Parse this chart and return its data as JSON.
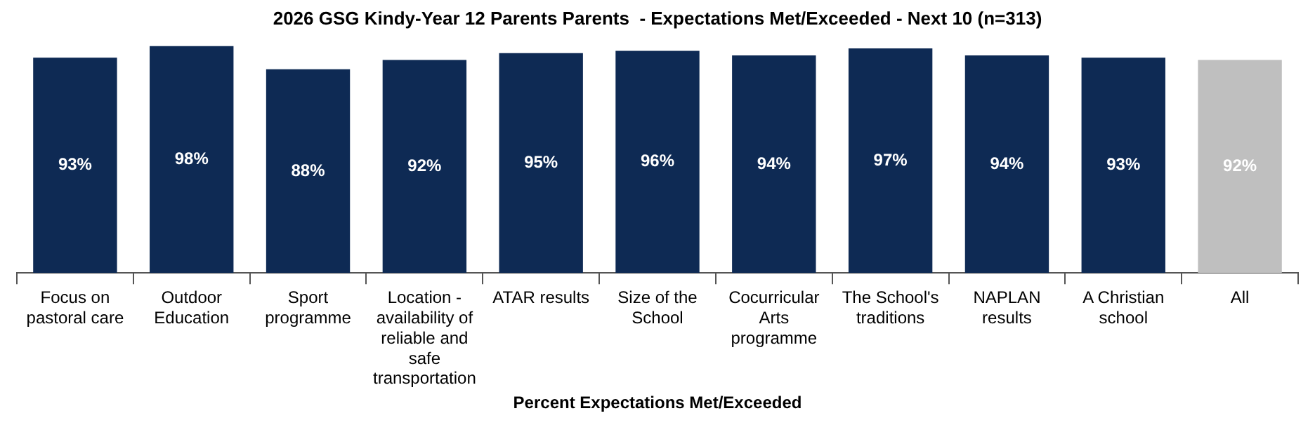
{
  "chart_data": {
    "type": "bar",
    "title": "2026 GSG Kindy-Year 12 Parents Parents  - Expectations Met/Exceeded - Next 10 (n=313)",
    "xlabel": "Percent Expectations Met/Exceeded",
    "categories": [
      "Focus on pastoral care",
      "Outdoor Education",
      "Sport programme",
      "Location - availability of reliable and safe transportation",
      "ATAR results",
      "Size of the School",
      "Cocurricular Arts programme",
      "The School's traditions",
      "NAPLAN results",
      "A Christian school",
      "All"
    ],
    "values": [
      93,
      98,
      88,
      92,
      95,
      96,
      94,
      97,
      94,
      93,
      92
    ],
    "value_labels": [
      "93%",
      "98%",
      "88%",
      "92%",
      "95%",
      "96%",
      "94%",
      "97%",
      "94%",
      "93%",
      "92%"
    ],
    "colors": [
      "#0e2a54",
      "#0e2a54",
      "#0e2a54",
      "#0e2a54",
      "#0e2a54",
      "#0e2a54",
      "#0e2a54",
      "#0e2a54",
      "#0e2a54",
      "#0e2a54",
      "#bfbfbf"
    ],
    "ylim": [
      0,
      100
    ],
    "tick_labels": "x",
    "grid": false,
    "legend": false
  }
}
